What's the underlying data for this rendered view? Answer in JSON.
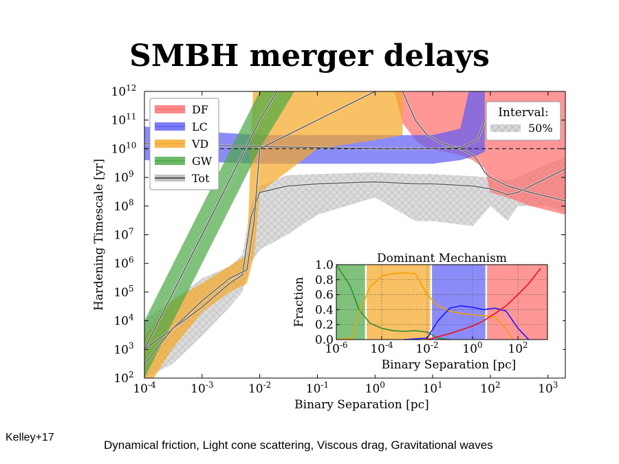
{
  "slide": {
    "title": "SMBH merger delays",
    "citation": "Kelley+17",
    "caption": "Dynamical friction, Light cone scattering, Viscous drag, Gravitational waves"
  },
  "chart_data": [
    {
      "type": "area",
      "xlabel": "Binary Separation [pc]",
      "ylabel": "Hardening Timescale [yr]",
      "xscale": "log",
      "yscale": "log",
      "xlim": [
        0.0001,
        2000
      ],
      "ylim": [
        100,
        1000000000000
      ],
      "x_ticks": [
        0.0001,
        0.001,
        0.01,
        0.1,
        1,
        10,
        100,
        1000
      ],
      "x_tick_labels": [
        [
          "10",
          "-4"
        ],
        [
          "10",
          "-3"
        ],
        [
          "10",
          "-2"
        ],
        [
          "10",
          "-1"
        ],
        [
          "10",
          "0"
        ],
        [
          "10",
          "1"
        ],
        [
          "10",
          "2"
        ],
        [
          "10",
          "3"
        ]
      ],
      "y_ticks": [
        100,
        1000,
        10000,
        100000,
        1000000,
        10000000,
        100000000,
        1000000000,
        10000000000,
        100000000000,
        1000000000000
      ],
      "y_tick_labels": [
        [
          "10",
          "2"
        ],
        [
          "10",
          "3"
        ],
        [
          "10",
          "4"
        ],
        [
          "10",
          "5"
        ],
        [
          "10",
          "6"
        ],
        [
          "10",
          "7"
        ],
        [
          "10",
          "8"
        ],
        [
          "10",
          "9"
        ],
        [
          "10",
          "10"
        ],
        [
          "10",
          "11"
        ],
        [
          "10",
          "12"
        ]
      ],
      "reference_line_y": 10000000000,
      "legend": {
        "placement": "top-left",
        "entries": [
          "DF",
          "LC",
          "VD",
          "GW",
          "Tot"
        ]
      },
      "interval_legend": {
        "placement": "top-right",
        "title": "Interval:",
        "label": "50%"
      },
      "series": [
        {
          "name": "DF",
          "color": "#ff6b6b",
          "x": [
            2,
            3,
            5,
            8,
            15,
            30,
            50,
            60,
            80,
            100,
            200,
            500,
            2000
          ],
          "lower": [
            2000000000000.0,
            80000000000.0,
            20000000000.0,
            10000000000.0,
            8000000000.0,
            6000000000.0,
            4000000000.0,
            3000000000.0,
            2000000000.0,
            300000000.0,
            200000000.0,
            100000000.0,
            50000000.0
          ],
          "upper": [
            10000000000000.0,
            10000000000000.0,
            10000000000000.0,
            10000000000000.0,
            10000000000000.0,
            10000000000000.0,
            10000000000000.0,
            10000000000000.0,
            10000000000000.0,
            10000000000000.0,
            10000000000000.0,
            10000000000000.0,
            10000000000000.0
          ],
          "median": [
            5000000000000.0,
            1000000000000.0,
            100000000000.0,
            30000000000.0,
            15000000000.0,
            10000000000.0,
            6000000000.0,
            4000000000.0,
            1500000000.0,
            1000000000.0,
            500000000.0,
            300000000.0,
            150000000.0
          ]
        },
        {
          "name": "LC",
          "color": "#5b5bf5",
          "x": [
            0.0001,
            0.001,
            0.01,
            0.1,
            1,
            10,
            30,
            60,
            80
          ],
          "lower": [
            4000000000.0,
            3500000000.0,
            3000000000.0,
            3000000000.0,
            3000000000.0,
            3000000000.0,
            4000000000.0,
            6000000000.0,
            8000000000.0
          ],
          "upper": [
            60000000000.0,
            40000000000.0,
            30000000000.0,
            30000000000.0,
            30000000000.0,
            30000000000.0,
            50000000000.0,
            20000000000000.0,
            20000000000000.0
          ],
          "median": [
            15000000000.0,
            13000000000.0,
            12000000000.0,
            11000000000.0,
            10000000000.0,
            10000000000.0,
            11000000000.0,
            20000000000.0,
            100000000000.0
          ]
        },
        {
          "name": "VD",
          "color": "#f5a623",
          "x": [
            0.0001,
            0.0003,
            0.001,
            0.003,
            0.006,
            0.008,
            0.01,
            0.1,
            1,
            3
          ],
          "lower": [
            30.0,
            1000.0,
            20000.0,
            100000.0,
            200000.0,
            2000000.0,
            300000000.0,
            10000000000.0,
            20000000000.0,
            30000000000.0
          ],
          "upper": [
            3000.0,
            50000.0,
            200000.0,
            800000.0,
            2000000.0,
            10000000000000.0,
            10000000000000.0,
            10000000000000.0,
            10000000000000.0,
            10000000000000.0
          ],
          "median": [
            300.0,
            5000.0,
            50000.0,
            300000.0,
            600000.0,
            30000000.0,
            10000000000.0,
            100000000000.0,
            1000000000000.0,
            5000000000000.0
          ]
        },
        {
          "name": "GW",
          "color": "#4aa843",
          "x": [
            0.0001,
            0.001,
            0.01,
            0.04,
            0.1
          ],
          "lower": [
            100.0,
            1000000.0,
            10000000000.0,
            1000000000000.0,
            10000000000000.0
          ],
          "upper": [
            10000.0,
            100000000.0,
            1000000000000.0,
            10000000000000.0,
            10000000000000.0
          ],
          "median": [
            1000.0,
            10000000.0,
            100000000000.0,
            10000000000000.0,
            10000000000000.0
          ]
        },
        {
          "name": "Tot",
          "color": "#777777",
          "x": [
            0.0001,
            0.0003,
            0.001,
            0.003,
            0.005,
            0.007,
            0.01,
            0.03,
            0.1,
            1,
            5,
            10,
            50,
            100,
            200,
            300,
            1000,
            2000
          ],
          "lower": [
            100.0,
            300.0,
            3000.0,
            30000.0,
            100000.0,
            1000000.0,
            3000000.0,
            10000000.0,
            50000000.0,
            200000000.0,
            30000000.0,
            30000000.0,
            20000000.0,
            100000000.0,
            30000000.0,
            100000000.0,
            100000000.0,
            60000000.0
          ],
          "upper": [
            10000.0,
            50000.0,
            300000.0,
            800000.0,
            2000000.0,
            100000000.0,
            500000000.0,
            1200000000.0,
            1300000000.0,
            1500000000.0,
            1300000000.0,
            1300000000.0,
            1100000000.0,
            1000000000.0,
            800000000.0,
            1000000000.0,
            3000000000.0,
            5000000000.0
          ],
          "median": [
            1000.0,
            5000.0,
            30000.0,
            200000.0,
            400000.0,
            40000000.0,
            300000000.0,
            500000000.0,
            600000000.0,
            700000000.0,
            600000000.0,
            600000000.0,
            500000000.0,
            400000000.0,
            250000000.0,
            300000000.0,
            1000000000.0,
            2000000000.0
          ]
        }
      ]
    },
    {
      "type": "line",
      "title": "Dominant Mechanism",
      "xlabel": "Binary Separation [pc]",
      "ylabel": "Fraction",
      "xscale": "log",
      "xlim": [
        1e-06,
        2000
      ],
      "ylim": [
        0,
        1
      ],
      "x_ticks": [
        1e-06,
        0.0001,
        0.01,
        1,
        100
      ],
      "x_tick_labels": [
        [
          "10",
          "-6"
        ],
        [
          "10",
          "-4"
        ],
        [
          "10",
          "-2"
        ],
        [
          "10",
          "0"
        ],
        [
          "10",
          "2"
        ]
      ],
      "y_ticks": [
        0,
        0.2,
        0.4,
        0.6,
        0.8,
        1.0
      ],
      "y_tick_labels": [
        "0.0",
        "0.2",
        "0.4",
        "0.6",
        "0.8",
        "1.0"
      ],
      "grid": true,
      "regions": [
        {
          "name": "GW",
          "from": 1e-06,
          "to": 2e-05,
          "color": "#4aa843"
        },
        {
          "name": "VD",
          "from": 2e-05,
          "to": 0.015,
          "color": "#f5a623"
        },
        {
          "name": "LC",
          "from": 0.015,
          "to": 4,
          "color": "#5b5bf5"
        },
        {
          "name": "DF",
          "from": 4,
          "to": 2000,
          "color": "#ff6b6b"
        }
      ],
      "series": [
        {
          "name": "GW",
          "color": "#2e8b2e",
          "x": [
            1e-06,
            4e-06,
            1e-05,
            3e-05,
            0.0001,
            0.0003,
            0.001,
            0.003,
            0.01,
            0.03,
            0.1
          ],
          "values": [
            1.0,
            0.72,
            0.4,
            0.22,
            0.15,
            0.12,
            0.11,
            0.12,
            0.1,
            0.02,
            0.0
          ]
        },
        {
          "name": "VD",
          "color": "#f0a000",
          "x": [
            1e-06,
            5e-06,
            1e-05,
            3e-05,
            0.0001,
            0.0003,
            0.001,
            0.003,
            0.01,
            0.03,
            0.1,
            0.3,
            1,
            3,
            10,
            30,
            60
          ],
          "values": [
            0.0,
            0.02,
            0.35,
            0.7,
            0.85,
            0.88,
            0.89,
            0.88,
            0.6,
            0.45,
            0.38,
            0.35,
            0.33,
            0.32,
            0.3,
            0.15,
            0.0
          ]
        },
        {
          "name": "LC",
          "color": "#1a1aff",
          "x": [
            0.001,
            0.01,
            0.03,
            0.1,
            0.3,
            1,
            3,
            10,
            30,
            100,
            300
          ],
          "values": [
            0.0,
            0.02,
            0.25,
            0.42,
            0.45,
            0.43,
            0.4,
            0.42,
            0.38,
            0.15,
            0.0
          ]
        },
        {
          "name": "DF",
          "color": "#ee1111",
          "x": [
            0.01,
            0.1,
            1,
            3,
            10,
            30,
            100,
            300,
            1000
          ],
          "values": [
            0.0,
            0.08,
            0.18,
            0.25,
            0.35,
            0.45,
            0.6,
            0.75,
            0.95
          ]
        }
      ]
    }
  ]
}
